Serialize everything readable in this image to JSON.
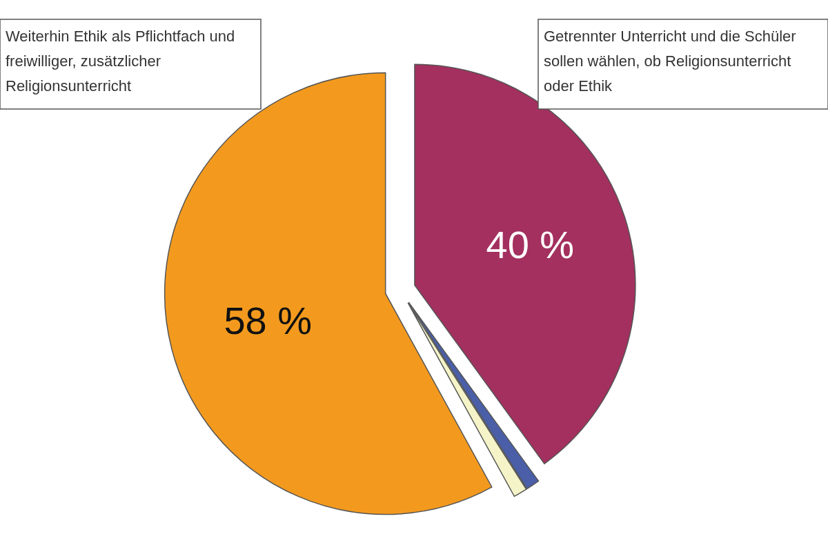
{
  "chart_data": {
    "type": "pie",
    "categories": [
      "Getrennter Unterricht und die Schüler sollen wählen, ob Religionsunterricht oder Ethik",
      null,
      null,
      "Weiterhin Ethik als Pflichtfach und freiwilliger, zusätzlicher Religionsunterricht"
    ],
    "values": [
      40,
      1,
      1,
      58
    ],
    "colors": [
      "#a3305f",
      "#4a5fa8",
      "#f4f4c8",
      "#f39a1e"
    ],
    "value_labels": [
      "40 %",
      null,
      null,
      "58 %"
    ]
  }
}
